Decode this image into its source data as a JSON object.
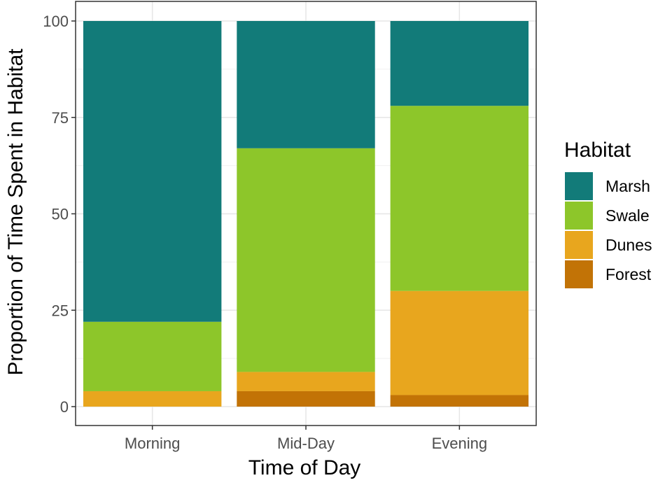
{
  "chart_data": {
    "type": "bar",
    "stacked": true,
    "categories": [
      "Morning",
      "Mid-Day",
      "Evening"
    ],
    "series": [
      {
        "name": "Forest",
        "color": "#C27306",
        "values": [
          0,
          4,
          3
        ]
      },
      {
        "name": "Dunes",
        "color": "#E8A61E",
        "values": [
          4,
          5,
          27
        ]
      },
      {
        "name": "Swale",
        "color": "#8DC62A",
        "values": [
          18,
          58,
          48
        ]
      },
      {
        "name": "Marsh",
        "color": "#127B79",
        "values": [
          78,
          33,
          22
        ]
      }
    ],
    "xlabel": "Time of Day",
    "ylabel": "Proportion of Time Spent in Habitat",
    "ylim": [
      0,
      100
    ],
    "yticks": [
      "0",
      "25",
      "50",
      "75",
      "100"
    ],
    "grid": true,
    "legend": {
      "title": "Habitat",
      "position": "right",
      "entries": [
        "Marsh",
        "Swale",
        "Dunes",
        "Forest"
      ]
    }
  }
}
